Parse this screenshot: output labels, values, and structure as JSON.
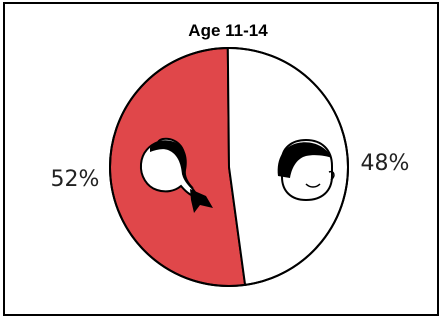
{
  "chart_data": {
    "type": "pie",
    "title": "Age 11-14",
    "slices": [
      {
        "label": "52%",
        "value": 52,
        "color": "#e0474a",
        "icon": "girl-head-icon"
      },
      {
        "label": "48%",
        "value": 48,
        "color": "#ffffff",
        "icon": "boy-head-icon"
      }
    ],
    "legend": "none"
  },
  "colors": {
    "border": "#000000",
    "background": "#ffffff"
  }
}
